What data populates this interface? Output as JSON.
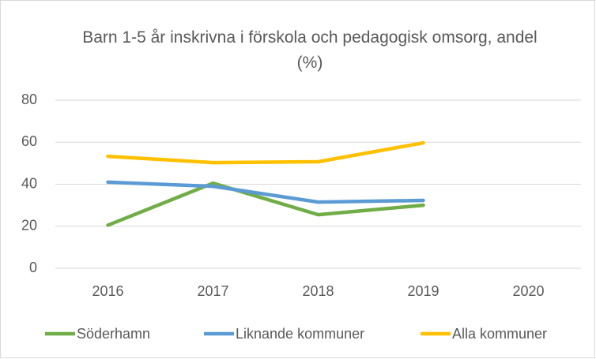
{
  "chart_data": {
    "type": "line",
    "title": "Barn 1-5 år inskrivna i förskola och pedagogisk omsorg, andel (%)",
    "categories": [
      "2016",
      "2017",
      "2018",
      "2019",
      "2020"
    ],
    "series": [
      {
        "name": "Söderhamn",
        "color": "#70ad47",
        "values": [
          20.5,
          40.5,
          25.5,
          30,
          null
        ]
      },
      {
        "name": "Liknande kommuner",
        "color": "#5b9bd5",
        "values": [
          41,
          39,
          31.5,
          32.3,
          null
        ]
      },
      {
        "name": "Alla kommuner",
        "color": "#ffc000",
        "values": [
          53.3,
          50.3,
          50.7,
          59.7,
          null
        ]
      }
    ],
    "ylim": [
      0,
      80
    ],
    "yticks": [
      0,
      20,
      40,
      60,
      80
    ],
    "grid": true,
    "legend": "bottom"
  }
}
